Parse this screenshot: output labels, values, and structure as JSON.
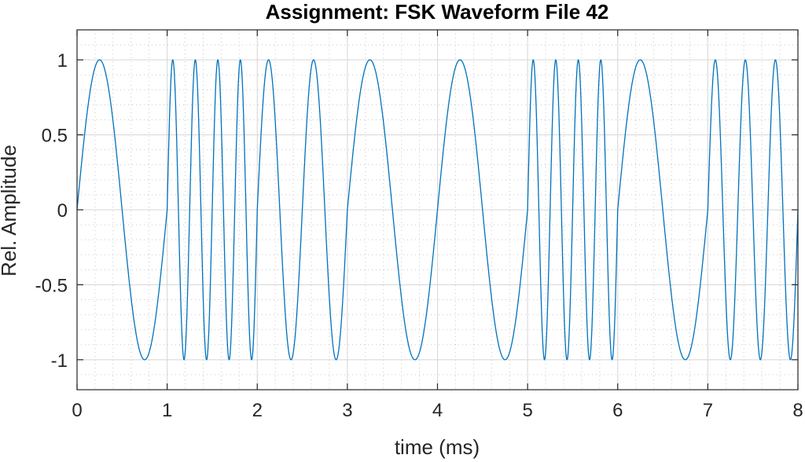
{
  "chart_data": {
    "type": "line",
    "title": "Assignment: FSK Waveform File 42",
    "xlabel": "time (ms)",
    "ylabel": "Rel. Amplitude",
    "xlim": [
      0,
      8
    ],
    "ylim": [
      -1.2,
      1.2
    ],
    "x_ticks": [
      0,
      1,
      2,
      3,
      4,
      5,
      6,
      7,
      8
    ],
    "x_tick_labels": [
      "0",
      "1",
      "2",
      "3",
      "4",
      "5",
      "6",
      "7",
      "8"
    ],
    "y_ticks": [
      -1,
      -0.5,
      0,
      0.5,
      1
    ],
    "y_tick_labels": [
      "-1",
      "-0.5",
      "0",
      "0.5",
      "1"
    ],
    "grid": true,
    "minor_grid": true,
    "series_color": "#0072bd",
    "series": [
      {
        "signal": "sin(2*pi*f*t)",
        "amplitude": 1,
        "segments": [
          {
            "t_start": 0,
            "t_end": 1,
            "frequency_khz": 1
          },
          {
            "t_start": 1,
            "t_end": 2,
            "frequency_khz": 4
          },
          {
            "t_start": 2,
            "t_end": 3,
            "frequency_khz": 2
          },
          {
            "t_start": 3,
            "t_end": 5,
            "frequency_khz": 1
          },
          {
            "t_start": 5,
            "t_end": 6,
            "frequency_khz": 4
          },
          {
            "t_start": 6,
            "t_end": 7,
            "frequency_khz": 1
          },
          {
            "t_start": 7,
            "t_end": 8,
            "frequency_khz": 3
          }
        ]
      }
    ]
  }
}
